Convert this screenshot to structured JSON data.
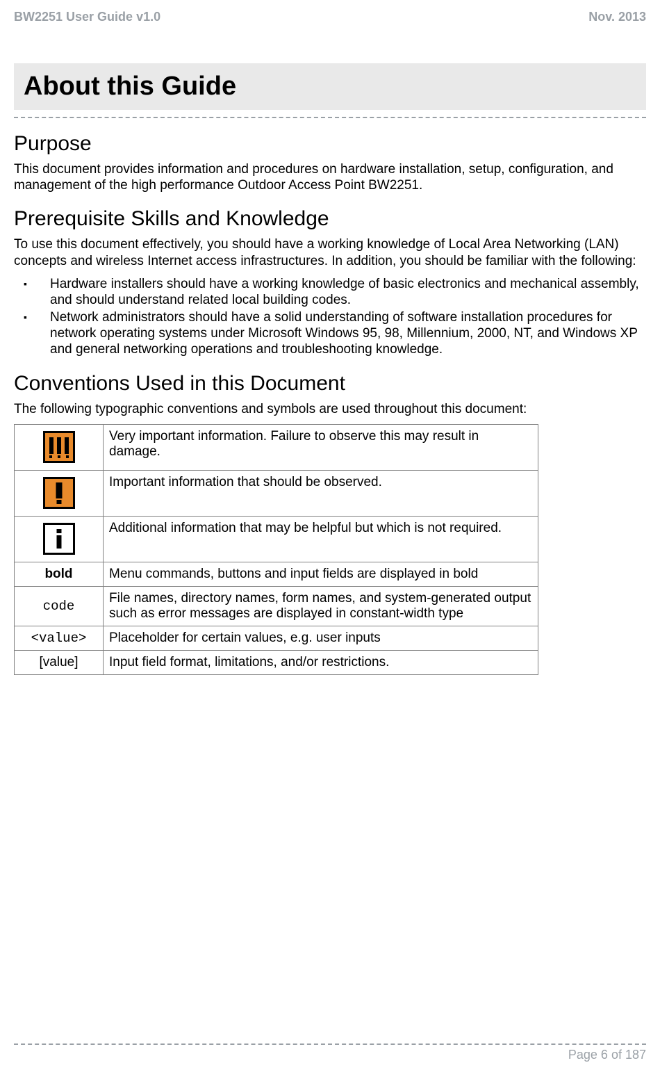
{
  "header": {
    "left": "BW2251 User Guide v1.0",
    "right": "Nov.  2013"
  },
  "chapter_title": "About this Guide",
  "sections": {
    "purpose": {
      "heading": "Purpose",
      "text": "This document provides information and procedures on hardware installation, setup, configuration, and management of the high performance Outdoor Access Point BW2251."
    },
    "prereq": {
      "heading": "Prerequisite Skills and Knowledge",
      "intro": "To use this document effectively, you should have a working knowledge of Local Area Networking (LAN) concepts and wireless Internet access infrastructures. In addition, you should be familiar with the following:",
      "bullets": [
        "Hardware installers should have a working knowledge of basic electronics and mechanical assembly, and should understand related local building codes.",
        "Network administrators should have a solid understanding of software installation procedures for network operating systems under Microsoft Windows 95, 98, Millennium, 2000, NT, and Windows XP and general networking operations and troubleshooting knowledge."
      ]
    },
    "conventions": {
      "heading": "Conventions Used in this Document",
      "intro": "The following typographic conventions and symbols are used throughout this document:",
      "rows": [
        {
          "symbol_type": "icon-danger",
          "desc": "Very important information. Failure to observe this may result in damage."
        },
        {
          "symbol_type": "icon-warn",
          "desc": "Important information that should be observed."
        },
        {
          "symbol_type": "icon-info",
          "desc": "Additional information that may be helpful but which is not required."
        },
        {
          "symbol_type": "bold",
          "symbol_text": "bold",
          "desc": "Menu commands, buttons and input fields are displayed in bold"
        },
        {
          "symbol_type": "code",
          "symbol_text": "code",
          "desc": "File names, directory names, form names, and system-generated output such as error messages are displayed in constant-width type"
        },
        {
          "symbol_type": "value",
          "symbol_text": "<value>",
          "desc": "Placeholder for certain values, e.g. user inputs"
        },
        {
          "symbol_type": "bracket",
          "symbol_text": "[value]",
          "desc": "Input field format, limitations, and/or restrictions."
        }
      ]
    }
  },
  "footer": {
    "page": "Page 6 of 187"
  },
  "colors": {
    "muted_text": "#9aa0a6",
    "box_bg": "#e9e9e9",
    "icon_orange": "#e88a2b",
    "border_gray": "#808080"
  }
}
